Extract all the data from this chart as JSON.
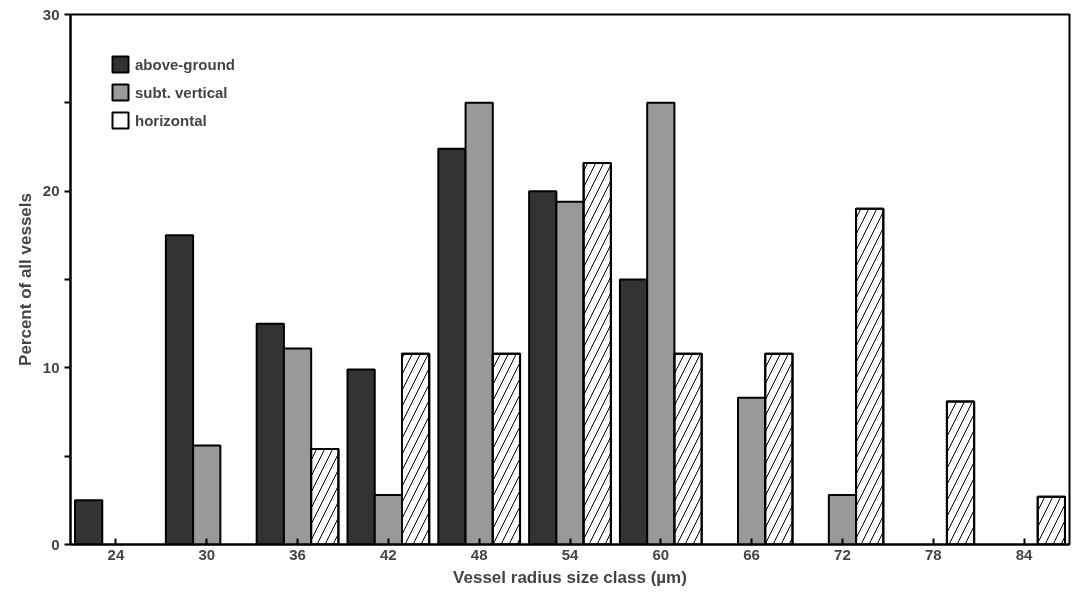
{
  "chart_data": {
    "type": "bar",
    "xlabel": "Vessel radius size class (µm)",
    "ylabel": "Percent of all vessels",
    "categories": [
      "24",
      "30",
      "36",
      "42",
      "48",
      "54",
      "60",
      "66",
      "72",
      "78",
      "84"
    ],
    "series": [
      {
        "name": "above-ground",
        "color": "#333333",
        "values": [
          2.5,
          17.5,
          12.5,
          9.9,
          22.4,
          20.0,
          15.0,
          null,
          null,
          null,
          null
        ]
      },
      {
        "name": "subt. vertical",
        "color": "#999999",
        "values": [
          null,
          5.6,
          11.1,
          2.8,
          25.0,
          19.4,
          25.0,
          8.3,
          2.8,
          null,
          null
        ]
      },
      {
        "name": "horizontal",
        "color": "#ffffff",
        "values": [
          null,
          null,
          5.4,
          10.8,
          10.8,
          21.6,
          10.8,
          10.8,
          19.0,
          8.1,
          2.7
        ]
      }
    ],
    "ylim": [
      0,
      30
    ],
    "yticks": [
      0,
      {
        "value": 5,
        "label": null
      },
      10,
      {
        "value": 15,
        "label": null
      },
      20,
      {
        "value": 25,
        "label": null
      },
      30
    ],
    "grid": false,
    "legend": "top left"
  }
}
